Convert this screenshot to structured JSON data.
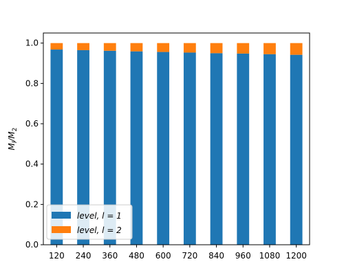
{
  "chart_data": {
    "type": "bar",
    "stacked": true,
    "categories": [
      "120",
      "240",
      "360",
      "480",
      "600",
      "720",
      "840",
      "960",
      "1080",
      "1200"
    ],
    "series": [
      {
        "name": "level, l = 1",
        "color": "#1f77b4",
        "values": [
          0.968,
          0.965,
          0.962,
          0.959,
          0.956,
          0.953,
          0.95,
          0.948,
          0.945,
          0.942
        ]
      },
      {
        "name": "level, l = 2",
        "color": "#ff7f0e",
        "values": [
          0.032,
          0.035,
          0.038,
          0.041,
          0.044,
          0.047,
          0.05,
          0.052,
          0.055,
          0.058
        ]
      }
    ],
    "ylabel": "M_l/M_2",
    "ylim": [
      0,
      1.05
    ],
    "yticks": [
      "0.0",
      "0.2",
      "0.4",
      "0.6",
      "0.8",
      "1.0"
    ],
    "grid": false,
    "legend": "lower-left"
  }
}
